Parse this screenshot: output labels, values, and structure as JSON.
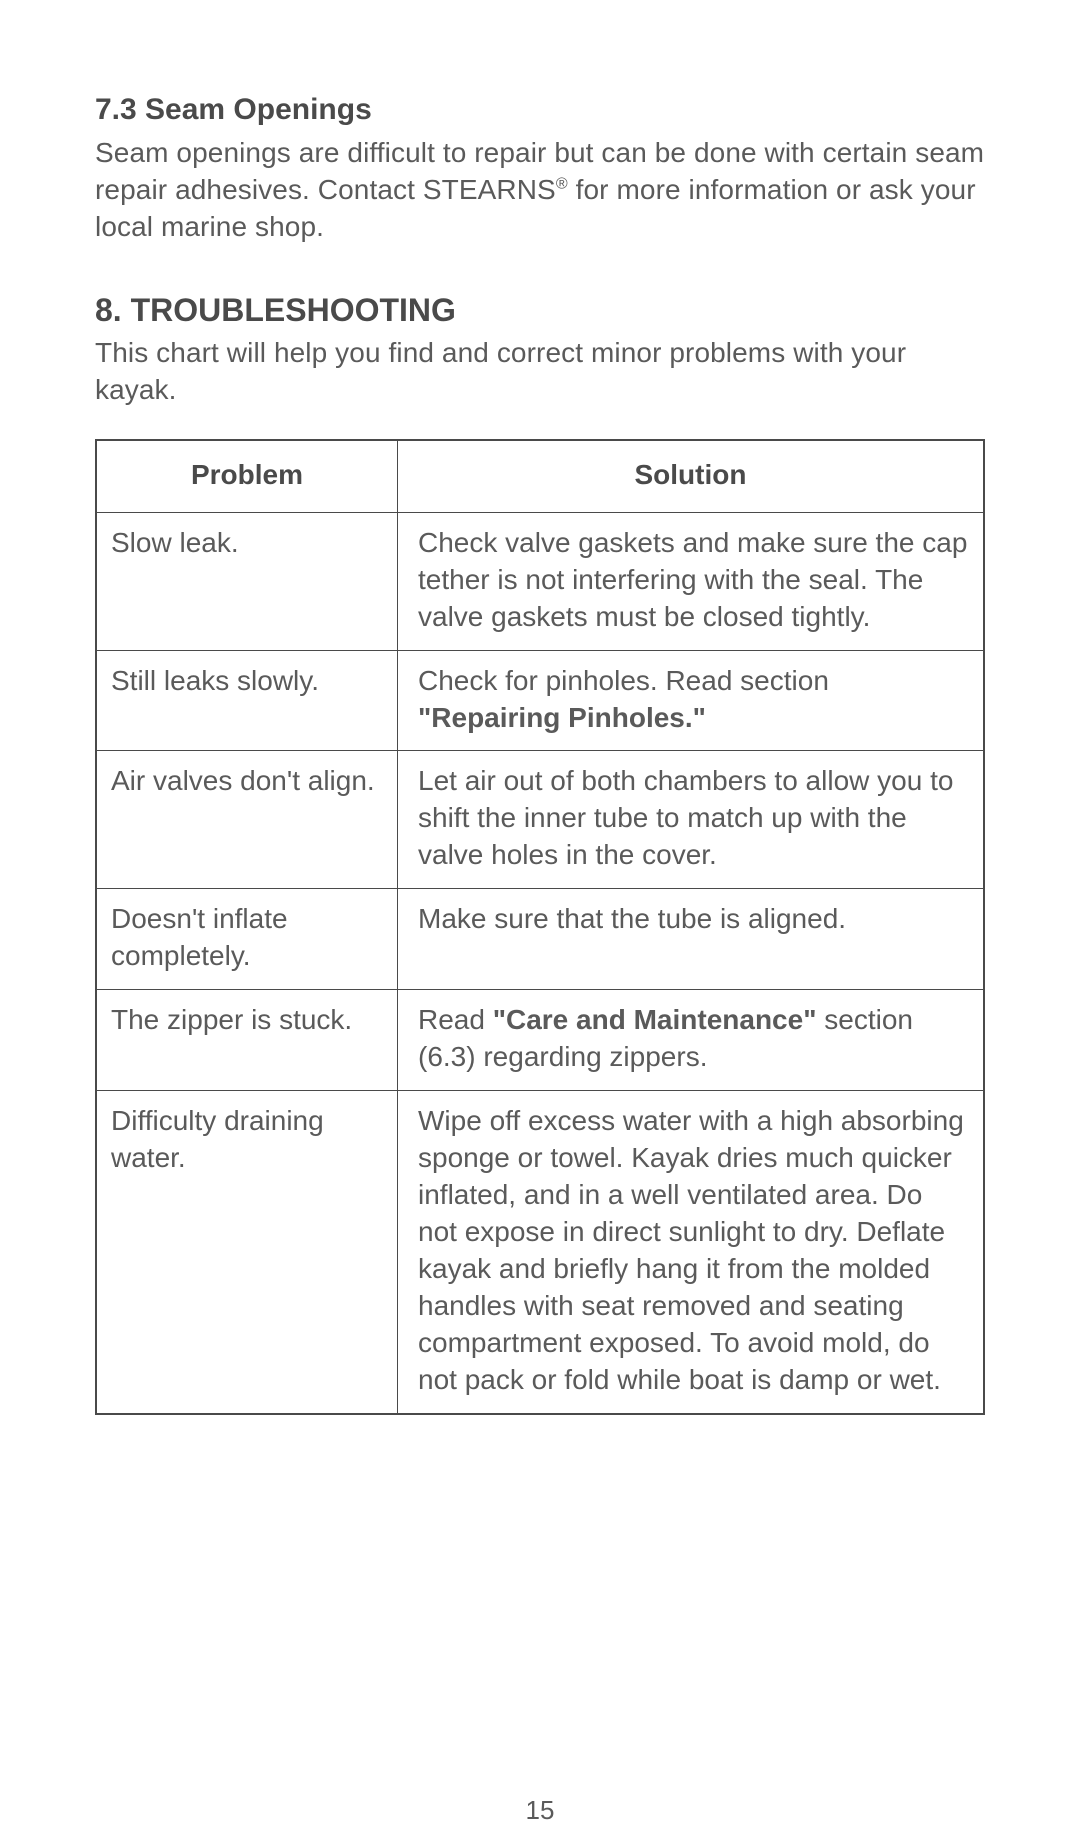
{
  "section73": {
    "heading": "7.3 Seam Openings",
    "text_a": "Seam openings are difficult to repair but can be done with certain seam repair adhesives. Contact STEARNS",
    "sup": "®",
    "text_b": " for more information or ask your local marine shop."
  },
  "section8": {
    "heading": "8. TROUBLESHOOTING",
    "intro": "This chart will help you find and correct minor problems with your kayak."
  },
  "table": {
    "headers": {
      "problem": "Problem",
      "solution": "Solution"
    },
    "rows": [
      {
        "problem": "Slow leak.",
        "solution": "Check valve gaskets and make sure the cap tether is not interfering with the seal. The valve gaskets must be closed tightly."
      },
      {
        "problem": "Still leaks slowly.",
        "solution_a": "Check for pinholes. Read section ",
        "solution_bold": "\"Repairing Pinholes.\""
      },
      {
        "problem": "Air valves don't align.",
        "solution": "Let air out of both chambers to allow you to shift the inner tube to match up with the valve holes in the cover."
      },
      {
        "problem": "Doesn't inflate completely.",
        "solution": "Make sure that the tube is aligned."
      },
      {
        "problem": "The zipper is stuck.",
        "solution_a": "Read ",
        "solution_bold": "\"Care and Maintenance\"",
        "solution_b": " section (6.3) regarding zippers."
      },
      {
        "problem": "Difficulty draining water.",
        "solution": "Wipe off excess water with a high absorbing sponge or towel. Kayak dries much quicker inflated, and in a well ventilated area. Do not expose in direct sunlight to dry. Deflate kayak and briefly hang it from the molded handles with seat removed and seating compartment exposed. To avoid mold, do not pack or fold while boat is  damp or wet."
      }
    ]
  },
  "page_number": "15",
  "colors": {
    "text": "#5a5a5a",
    "heading": "#4a4a4a",
    "border": "#4a4a4a",
    "background": "#ffffff"
  },
  "typography": {
    "body_fontsize": 28,
    "section_heading_fontsize": 30,
    "main_heading_fontsize": 32,
    "pagenum_fontsize": 26
  }
}
